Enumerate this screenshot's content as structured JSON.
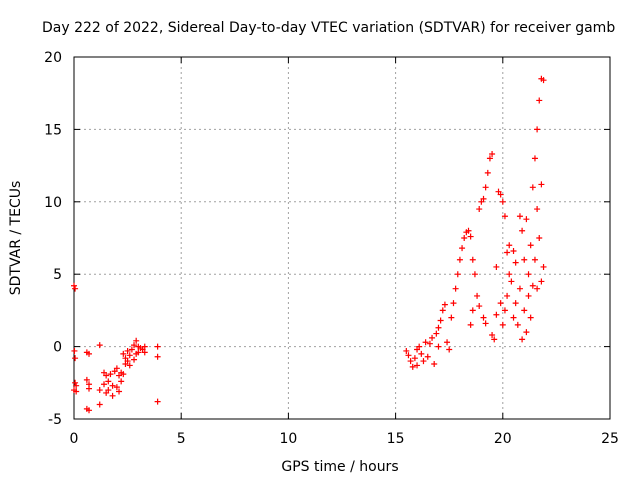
{
  "chart_data": {
    "type": "scatter",
    "title": "Day 222 of 2022, Sidereal Day-to-day VTEC variation (SDTVAR) for receiver gamb",
    "xlabel": "GPS time / hours",
    "ylabel": "SDTVAR / TECUs",
    "xlim": [
      0,
      25
    ],
    "ylim": [
      -5,
      20
    ],
    "x_ticks": [
      "0",
      "5",
      "10",
      "15",
      "20",
      "25"
    ],
    "y_ticks": [
      "-5",
      "0",
      "5",
      "10",
      "15",
      "20"
    ],
    "grid": true,
    "marker": "+",
    "series_color": "#ff0000",
    "series": [
      {
        "name": "SDTVAR",
        "points": [
          [
            0.0,
            4.2
          ],
          [
            0.05,
            4.0
          ],
          [
            0.02,
            -0.3
          ],
          [
            0.05,
            -0.8
          ],
          [
            0.05,
            -2.5
          ],
          [
            0.1,
            -2.7
          ],
          [
            0.0,
            -3.0
          ],
          [
            0.1,
            -3.1
          ],
          [
            0.6,
            -0.4
          ],
          [
            0.7,
            -0.5
          ],
          [
            0.6,
            -2.3
          ],
          [
            0.7,
            -2.6
          ],
          [
            0.7,
            -2.9
          ],
          [
            0.6,
            -4.3
          ],
          [
            0.7,
            -4.4
          ],
          [
            1.2,
            0.1
          ],
          [
            1.2,
            -3.0
          ],
          [
            1.2,
            -4.0
          ],
          [
            1.4,
            -1.8
          ],
          [
            1.4,
            -2.6
          ],
          [
            1.5,
            -2.0
          ],
          [
            1.5,
            -3.2
          ],
          [
            1.6,
            -2.4
          ],
          [
            1.6,
            -3.0
          ],
          [
            1.7,
            -1.9
          ],
          [
            1.8,
            -2.7
          ],
          [
            1.8,
            -3.4
          ],
          [
            1.9,
            -1.7
          ],
          [
            2.0,
            -1.5
          ],
          [
            2.0,
            -2.8
          ],
          [
            2.1,
            -2.0
          ],
          [
            2.1,
            -3.1
          ],
          [
            2.2,
            -1.8
          ],
          [
            2.2,
            -2.4
          ],
          [
            2.3,
            -0.5
          ],
          [
            2.3,
            -1.9
          ],
          [
            2.4,
            -0.8
          ],
          [
            2.4,
            -1.2
          ],
          [
            2.5,
            -0.3
          ],
          [
            2.5,
            -1.0
          ],
          [
            2.6,
            -0.6
          ],
          [
            2.6,
            -1.3
          ],
          [
            2.7,
            -0.2
          ],
          [
            2.8,
            0.1
          ],
          [
            2.8,
            -0.9
          ],
          [
            2.9,
            0.4
          ],
          [
            2.9,
            -0.5
          ],
          [
            3.0,
            0.0
          ],
          [
            3.0,
            -0.4
          ],
          [
            3.1,
            -0.1
          ],
          [
            3.2,
            -0.2
          ],
          [
            3.3,
            0.0
          ],
          [
            3.3,
            -0.4
          ],
          [
            3.9,
            0.0
          ],
          [
            3.9,
            -0.7
          ],
          [
            3.9,
            -3.8
          ],
          [
            15.5,
            -0.3
          ],
          [
            15.6,
            -0.6
          ],
          [
            15.7,
            -1.0
          ],
          [
            15.8,
            -1.4
          ],
          [
            15.9,
            -0.8
          ],
          [
            16.0,
            -1.3
          ],
          [
            16.0,
            -0.2
          ],
          [
            16.1,
            0.0
          ],
          [
            16.2,
            -0.5
          ],
          [
            16.3,
            -1.0
          ],
          [
            16.4,
            0.3
          ],
          [
            16.5,
            -0.7
          ],
          [
            16.6,
            0.2
          ],
          [
            16.7,
            0.6
          ],
          [
            16.8,
            -1.2
          ],
          [
            16.9,
            0.9
          ],
          [
            17.0,
            0.0
          ],
          [
            17.0,
            1.3
          ],
          [
            17.1,
            1.8
          ],
          [
            17.2,
            2.5
          ],
          [
            17.3,
            2.9
          ],
          [
            17.4,
            0.3
          ],
          [
            17.5,
            -0.2
          ],
          [
            17.6,
            2.0
          ],
          [
            17.7,
            3.0
          ],
          [
            17.8,
            4.0
          ],
          [
            17.9,
            5.0
          ],
          [
            18.0,
            6.0
          ],
          [
            18.1,
            6.8
          ],
          [
            18.2,
            7.5
          ],
          [
            18.3,
            7.9
          ],
          [
            18.4,
            8.0
          ],
          [
            18.5,
            7.6
          ],
          [
            18.5,
            1.5
          ],
          [
            18.6,
            2.5
          ],
          [
            18.6,
            6.0
          ],
          [
            18.7,
            5.0
          ],
          [
            18.8,
            3.5
          ],
          [
            18.9,
            2.8
          ],
          [
            18.9,
            9.5
          ],
          [
            19.0,
            10.0
          ],
          [
            19.1,
            10.2
          ],
          [
            19.1,
            2.0
          ],
          [
            19.2,
            1.6
          ],
          [
            19.2,
            11.0
          ],
          [
            19.3,
            12.0
          ],
          [
            19.4,
            13.0
          ],
          [
            19.5,
            13.3
          ],
          [
            19.5,
            0.8
          ],
          [
            19.6,
            0.5
          ],
          [
            19.7,
            2.2
          ],
          [
            19.7,
            5.5
          ],
          [
            19.8,
            10.7
          ],
          [
            19.9,
            10.5
          ],
          [
            19.9,
            3.0
          ],
          [
            20.0,
            1.5
          ],
          [
            20.0,
            10.0
          ],
          [
            20.1,
            9.0
          ],
          [
            20.1,
            2.5
          ],
          [
            20.2,
            3.5
          ],
          [
            20.2,
            6.5
          ],
          [
            20.3,
            7.0
          ],
          [
            20.3,
            5.0
          ],
          [
            20.4,
            4.5
          ],
          [
            20.5,
            6.6
          ],
          [
            20.5,
            2.0
          ],
          [
            20.6,
            3.0
          ],
          [
            20.6,
            5.8
          ],
          [
            20.7,
            1.5
          ],
          [
            20.8,
            4.0
          ],
          [
            20.8,
            9.0
          ],
          [
            20.9,
            8.0
          ],
          [
            20.9,
            0.5
          ],
          [
            21.0,
            2.5
          ],
          [
            21.0,
            6.0
          ],
          [
            21.1,
            1.0
          ],
          [
            21.1,
            8.8
          ],
          [
            21.2,
            3.5
          ],
          [
            21.2,
            5.0
          ],
          [
            21.3,
            2.0
          ],
          [
            21.3,
            7.0
          ],
          [
            21.4,
            4.2
          ],
          [
            21.4,
            11.0
          ],
          [
            21.5,
            13.0
          ],
          [
            21.5,
            6.0
          ],
          [
            21.6,
            15.0
          ],
          [
            21.6,
            4.0
          ],
          [
            21.6,
            9.5
          ],
          [
            21.7,
            17.0
          ],
          [
            21.7,
            7.5
          ],
          [
            21.8,
            18.5
          ],
          [
            21.8,
            11.2
          ],
          [
            21.8,
            4.5
          ],
          [
            21.9,
            5.5
          ],
          [
            21.9,
            18.4
          ]
        ]
      }
    ]
  }
}
